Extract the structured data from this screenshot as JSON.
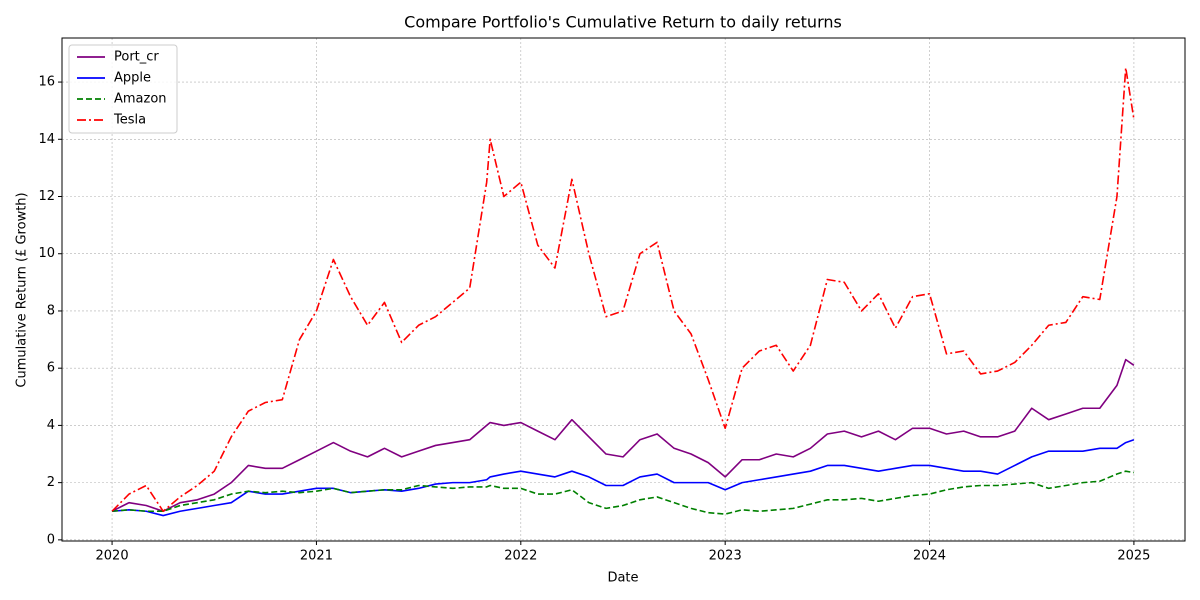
{
  "chart_data": {
    "type": "line",
    "title": "Compare Portfolio's Cumulative Return to daily returns",
    "xlabel": "Date",
    "ylabel": "Cumulative Return (£ Growth)",
    "x": [
      2020,
      2020.083,
      2020.167,
      2020.25,
      2020.333,
      2020.417,
      2020.5,
      2020.583,
      2020.667,
      2020.75,
      2020.833,
      2020.917,
      2021,
      2021.083,
      2021.167,
      2021.25,
      2021.333,
      2021.417,
      2021.5,
      2021.583,
      2021.667,
      2021.75,
      2021.833,
      2021.85,
      2021.917,
      2022,
      2022.083,
      2022.167,
      2022.25,
      2022.333,
      2022.417,
      2022.5,
      2022.583,
      2022.667,
      2022.75,
      2022.833,
      2022.917,
      2023,
      2023.083,
      2023.167,
      2023.25,
      2023.333,
      2023.417,
      2023.5,
      2023.583,
      2023.667,
      2023.75,
      2023.833,
      2023.917,
      2024,
      2024.083,
      2024.167,
      2024.25,
      2024.333,
      2024.417,
      2024.5,
      2024.583,
      2024.667,
      2024.75,
      2024.833,
      2024.917,
      2024.96,
      2025
    ],
    "series": [
      {
        "name": "Port_cr",
        "color": "#800080",
        "dash": "solid",
        "values": [
          1.0,
          1.3,
          1.2,
          1.0,
          1.3,
          1.4,
          1.6,
          2.0,
          2.6,
          2.5,
          2.5,
          2.8,
          3.1,
          3.4,
          3.1,
          2.9,
          3.2,
          2.9,
          3.1,
          3.3,
          3.4,
          3.5,
          4.0,
          4.1,
          4.0,
          4.1,
          3.8,
          3.5,
          4.2,
          3.6,
          3.0,
          2.9,
          3.5,
          3.7,
          3.2,
          3.0,
          2.7,
          2.2,
          2.8,
          2.8,
          3.0,
          2.9,
          3.2,
          3.7,
          3.8,
          3.6,
          3.8,
          3.5,
          3.9,
          3.9,
          3.7,
          3.8,
          3.6,
          3.6,
          3.8,
          4.6,
          4.2,
          4.4,
          4.6,
          4.6,
          5.4,
          6.3,
          6.1
        ]
      },
      {
        "name": "Apple",
        "color": "#0000ff",
        "dash": "solid",
        "values": [
          1.0,
          1.05,
          1.0,
          0.85,
          1.0,
          1.1,
          1.2,
          1.3,
          1.7,
          1.6,
          1.6,
          1.7,
          1.8,
          1.8,
          1.65,
          1.7,
          1.75,
          1.7,
          1.8,
          1.95,
          2.0,
          2.0,
          2.1,
          2.2,
          2.3,
          2.4,
          2.3,
          2.2,
          2.4,
          2.2,
          1.9,
          1.9,
          2.2,
          2.3,
          2.0,
          2.0,
          2.0,
          1.75,
          2.0,
          2.1,
          2.2,
          2.3,
          2.4,
          2.6,
          2.6,
          2.5,
          2.4,
          2.5,
          2.6,
          2.6,
          2.5,
          2.4,
          2.4,
          2.3,
          2.6,
          2.9,
          3.1,
          3.1,
          3.1,
          3.2,
          3.2,
          3.4,
          3.5
        ]
      },
      {
        "name": "Amazon",
        "color": "#008000",
        "dash": "dashed",
        "values": [
          1.0,
          1.05,
          1.0,
          1.0,
          1.2,
          1.3,
          1.4,
          1.6,
          1.7,
          1.65,
          1.7,
          1.65,
          1.7,
          1.8,
          1.65,
          1.7,
          1.75,
          1.75,
          1.9,
          1.85,
          1.8,
          1.85,
          1.85,
          1.9,
          1.8,
          1.8,
          1.6,
          1.6,
          1.75,
          1.3,
          1.1,
          1.2,
          1.4,
          1.5,
          1.3,
          1.1,
          0.95,
          0.9,
          1.05,
          1.0,
          1.05,
          1.1,
          1.25,
          1.4,
          1.4,
          1.45,
          1.35,
          1.45,
          1.55,
          1.6,
          1.75,
          1.85,
          1.9,
          1.9,
          1.95,
          2.0,
          1.8,
          1.9,
          2.0,
          2.05,
          2.3,
          2.4,
          2.35
        ]
      },
      {
        "name": "Tesla",
        "color": "#ff0000",
        "dash": "dashdot",
        "values": [
          1.0,
          1.6,
          1.9,
          1.0,
          1.5,
          1.9,
          2.4,
          3.6,
          4.5,
          4.8,
          4.9,
          7.0,
          8.0,
          9.8,
          8.5,
          7.5,
          8.3,
          6.9,
          7.5,
          7.8,
          8.3,
          8.8,
          12.5,
          14.0,
          12.0,
          12.5,
          10.3,
          9.5,
          12.6,
          10.0,
          7.8,
          8.0,
          10.0,
          10.4,
          8.0,
          7.2,
          5.6,
          3.9,
          6.0,
          6.6,
          6.8,
          5.9,
          6.8,
          9.1,
          9.0,
          8.0,
          8.6,
          7.4,
          8.5,
          8.6,
          6.5,
          6.6,
          5.8,
          5.9,
          6.2,
          6.8,
          7.5,
          7.6,
          8.5,
          8.4,
          12.0,
          16.5,
          14.7
        ]
      }
    ],
    "xlim": [
      2019.755,
      2025.25
    ],
    "xticks": [
      2020,
      2021,
      2022,
      2023,
      2024,
      2025
    ],
    "ylim": [
      -0.04,
      17.54
    ],
    "yticks": [
      0,
      2,
      4,
      6,
      8,
      10,
      12,
      14,
      16
    ],
    "grid": true,
    "legend": "upper-left"
  }
}
